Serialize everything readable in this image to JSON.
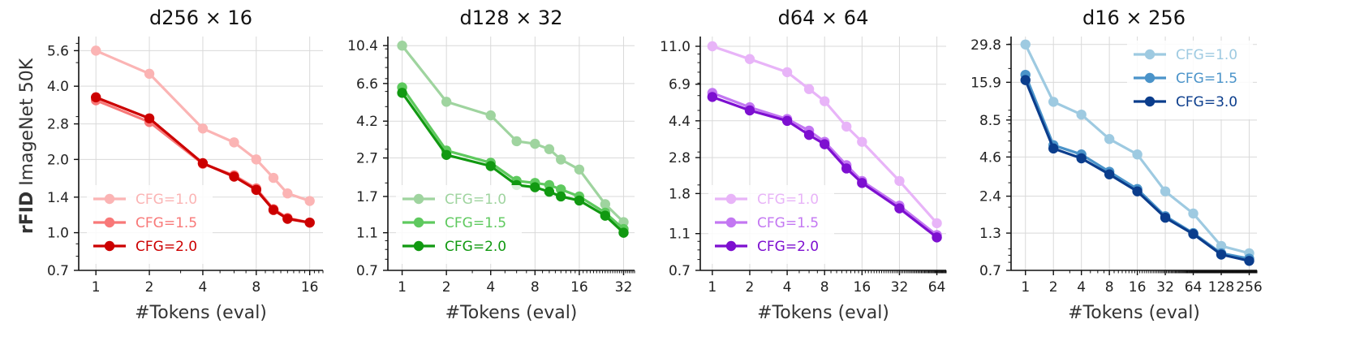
{
  "figure": {
    "ylabel_bold": "rFID",
    "ylabel_rest": " ImageNet 50K",
    "xlabel": "#Tokens (eval)"
  },
  "chart_data": [
    {
      "type": "line",
      "title": "d256 × 16",
      "xlabel": "#Tokens (eval)",
      "ylabel": "rFID ImageNet 50K",
      "xscale": "log2",
      "yscale": "log",
      "xlim": [
        0.8,
        19
      ],
      "ylim": [
        0.7,
        6.4
      ],
      "xticks": [
        1,
        2,
        4,
        8,
        16
      ],
      "xtick_labels": [
        "1",
        "2",
        "4",
        "8",
        "16"
      ],
      "yticks": [
        0.7,
        1.0,
        1.4,
        2.0,
        2.8,
        4.0,
        5.6
      ],
      "ytick_labels": [
        "0.7",
        "1.0",
        "1.4",
        "2.0",
        "2.8",
        "4.0",
        "5.6"
      ],
      "legend_position": "lower-left",
      "series": [
        {
          "name": "CFG=1.0",
          "color": "#fbb4b4",
          "x": [
            1,
            2,
            4,
            6,
            8,
            10,
            12,
            16
          ],
          "y": [
            5.6,
            4.5,
            2.68,
            2.35,
            2.0,
            1.68,
            1.45,
            1.35
          ]
        },
        {
          "name": "CFG=1.5",
          "color": "#f87878",
          "x": [
            1,
            2,
            4,
            6,
            8,
            10,
            12,
            16
          ],
          "y": [
            3.5,
            2.85,
            1.92,
            1.72,
            1.52,
            1.25,
            1.15,
            1.1
          ]
        },
        {
          "name": "CFG=2.0",
          "color": "#cc0000",
          "x": [
            1,
            2,
            4,
            6,
            8,
            10,
            12,
            16
          ],
          "y": [
            3.6,
            2.95,
            1.93,
            1.7,
            1.5,
            1.24,
            1.14,
            1.1
          ]
        }
      ]
    },
    {
      "type": "line",
      "title": "d128 × 32",
      "xlabel": "#Tokens (eval)",
      "ylabel": "",
      "xscale": "log2",
      "yscale": "log",
      "xlim": [
        0.8,
        38
      ],
      "ylim": [
        0.7,
        11.6
      ],
      "xticks": [
        1,
        2,
        4,
        8,
        16,
        32
      ],
      "xtick_labels": [
        "1",
        "2",
        "4",
        "8",
        "16",
        "32"
      ],
      "yticks": [
        0.7,
        1.1,
        1.7,
        2.7,
        4.2,
        6.6,
        10.4
      ],
      "ytick_labels": [
        "0.7",
        "1.1",
        "1.7",
        "2.7",
        "4.2",
        "6.6",
        "10.4"
      ],
      "legend_position": "lower-left",
      "series": [
        {
          "name": "CFG=1.0",
          "color": "#9fd49f",
          "x": [
            1,
            2,
            4,
            6,
            8,
            10,
            12,
            16,
            24,
            32
          ],
          "y": [
            10.4,
            5.3,
            4.5,
            3.3,
            3.2,
            3.0,
            2.65,
            2.35,
            1.55,
            1.25
          ]
        },
        {
          "name": "CFG=1.5",
          "color": "#5ec95e",
          "x": [
            1,
            2,
            4,
            6,
            8,
            10,
            12,
            16,
            24,
            32
          ],
          "y": [
            6.3,
            2.95,
            2.55,
            2.05,
            2.0,
            1.95,
            1.85,
            1.7,
            1.4,
            1.15
          ]
        },
        {
          "name": "CFG=2.0",
          "color": "#119911",
          "x": [
            1,
            2,
            4,
            6,
            8,
            10,
            12,
            16,
            24,
            32
          ],
          "y": [
            5.9,
            2.8,
            2.45,
            1.95,
            1.9,
            1.8,
            1.7,
            1.62,
            1.35,
            1.1
          ]
        }
      ]
    },
    {
      "type": "line",
      "title": "d64 × 64",
      "xlabel": "#Tokens (eval)",
      "ylabel": "",
      "xscale": "log2",
      "yscale": "log",
      "xlim": [
        0.8,
        76
      ],
      "ylim": [
        0.7,
        12.4
      ],
      "xticks": [
        1,
        2,
        4,
        8,
        16,
        32,
        64
      ],
      "xtick_labels": [
        "1",
        "2",
        "4",
        "8",
        "16",
        "32",
        "64"
      ],
      "yticks": [
        0.7,
        1.1,
        1.8,
        2.8,
        4.4,
        6.9,
        11.0
      ],
      "ytick_labels": [
        "0.7",
        "1.1",
        "1.8",
        "2.8",
        "4.4",
        "6.9",
        "11.0"
      ],
      "legend_position": "lower-left",
      "series": [
        {
          "name": "CFG=1.0",
          "color": "#e8b4f8",
          "x": [
            1,
            2,
            4,
            6,
            8,
            12,
            16,
            32,
            64
          ],
          "y": [
            11.0,
            9.4,
            8.0,
            6.5,
            5.6,
            4.1,
            3.4,
            2.1,
            1.25
          ]
        },
        {
          "name": "CFG=1.5",
          "color": "#c377f2",
          "x": [
            1,
            2,
            4,
            6,
            8,
            12,
            16,
            32,
            64
          ],
          "y": [
            6.2,
            5.2,
            4.5,
            3.9,
            3.4,
            2.55,
            2.1,
            1.55,
            1.08
          ]
        },
        {
          "name": "CFG=2.0",
          "color": "#7d0fd0",
          "x": [
            1,
            2,
            4,
            6,
            8,
            12,
            16,
            32,
            64
          ],
          "y": [
            5.9,
            5.0,
            4.4,
            3.7,
            3.3,
            2.45,
            2.05,
            1.5,
            1.05
          ]
        }
      ]
    },
    {
      "type": "line",
      "title": "d16 × 256",
      "xlabel": "#Tokens (eval)",
      "ylabel": "",
      "xscale": "log2",
      "yscale": "log",
      "xlim": [
        0.7,
        310
      ],
      "ylim": [
        0.7,
        34
      ],
      "xticks": [
        1,
        2,
        4,
        8,
        16,
        32,
        64,
        128,
        256
      ],
      "xtick_labels": [
        "1",
        "2",
        "4",
        "8",
        "16",
        "32",
        "64",
        "128",
        "256"
      ],
      "yticks": [
        0.7,
        1.3,
        2.4,
        4.6,
        8.5,
        15.9,
        29.8
      ],
      "ytick_labels": [
        "0.7",
        "1.3",
        "2.4",
        "4.6",
        "8.5",
        "15.9",
        "29.8"
      ],
      "legend_position": "upper-right",
      "series": [
        {
          "name": "CFG=1.0",
          "color": "#9ecae1",
          "x": [
            1,
            2,
            4,
            8,
            16,
            32,
            64,
            128,
            256
          ],
          "y": [
            29.8,
            11.5,
            9.3,
            6.2,
            4.8,
            2.6,
            1.8,
            1.05,
            0.93
          ]
        },
        {
          "name": "CFG=1.5",
          "color": "#4a93c9",
          "x": [
            1,
            2,
            4,
            8,
            16,
            32,
            64,
            128,
            256
          ],
          "y": [
            18.0,
            5.6,
            4.8,
            3.6,
            2.7,
            1.72,
            1.3,
            0.93,
            0.85
          ]
        },
        {
          "name": "CFG=3.0",
          "color": "#0b3d8c",
          "x": [
            1,
            2,
            4,
            8,
            16,
            32,
            64,
            128,
            256
          ],
          "y": [
            16.5,
            5.3,
            4.5,
            3.45,
            2.6,
            1.68,
            1.28,
            0.91,
            0.82
          ]
        }
      ]
    }
  ]
}
